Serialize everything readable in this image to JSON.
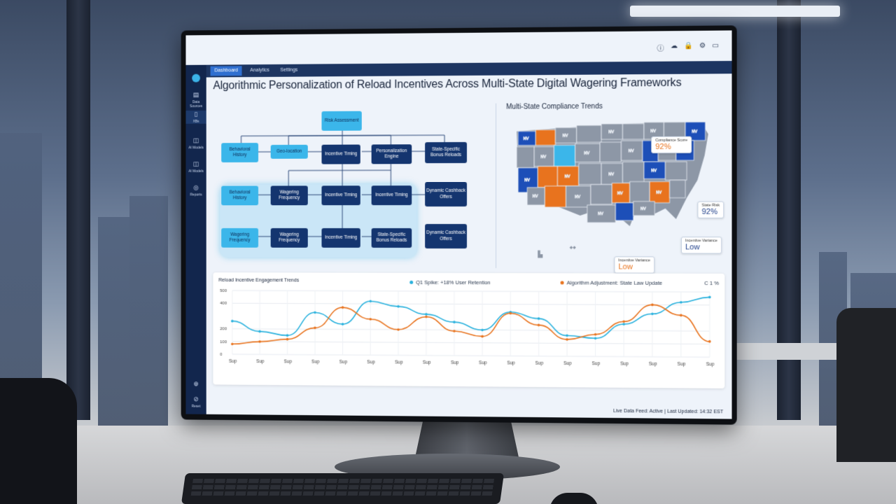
{
  "system_icons": [
    "info-icon",
    "cloud-icon",
    "lock-icon",
    "settings-icon",
    "window-icon"
  ],
  "sidebar": {
    "items": [
      {
        "icon": "database-icon",
        "label": "Data Sources"
      },
      {
        "icon": "list-icon",
        "label": "XBs"
      },
      {
        "icon": "model-icon",
        "label": "AI Models"
      },
      {
        "icon": "model-icon",
        "label": "AI Models"
      },
      {
        "icon": "report-icon",
        "label": "Reports"
      }
    ],
    "bottom": [
      {
        "icon": "help-icon",
        "label": ""
      },
      {
        "icon": "reset-icon",
        "label": "Reset"
      }
    ]
  },
  "tabs": [
    {
      "label": "Dashboard",
      "active": true
    },
    {
      "label": "Analytics",
      "active": false
    },
    {
      "label": "Settings",
      "active": false
    }
  ],
  "page_title": "Algorithmic Personalization of Reload Incentives Across Multi-State Digital Wagering Frameworks",
  "flowchart": {
    "top": "Risk Assessment",
    "row1": [
      "Behavioral History",
      "Geo-location",
      "Incentive Timing",
      "Personalization Engine",
      "State-Specific Bonus Reloads"
    ],
    "row2": [
      "Behavioral History",
      "Wagering Frequency",
      "Incentive Timing",
      "Incentive Timing",
      "Dynamic Cashback Offers"
    ],
    "row3": [
      "Wagering Frequency",
      "Wagering Frequency",
      "Incentive Timing",
      "State-Specific Bonus Reloads",
      "Dynamic Cashback Offers"
    ]
  },
  "map": {
    "title": "Multi-State Compliance Trends",
    "callouts": [
      {
        "label": "Compliance Score",
        "value": "92%",
        "color": "#e8731e"
      },
      {
        "label": "State Risk",
        "value": "92%",
        "color": "#1f3f8a"
      },
      {
        "label": "Incentive Variance",
        "value": "Low",
        "color": "#1f3f8a"
      },
      {
        "label": "Incentive Variance",
        "value": "Low",
        "color": "#e8731e"
      }
    ],
    "state_label": "NV",
    "colors": {
      "gray": "#8d97a6",
      "blue": "#1d4fb8",
      "orange": "#e8731e",
      "cyan": "#3bb6ea"
    }
  },
  "chart_data": {
    "type": "line",
    "title": "Reload Incentive Engagement Trends",
    "x": [
      "Sup",
      "Sup",
      "Sup",
      "Sup",
      "Sup",
      "Sup",
      "Sup",
      "Sup",
      "Sup",
      "Sup",
      "Sup",
      "Sup",
      "Sup",
      "Sup",
      "Sup",
      "Sup",
      "Sup",
      "Sup"
    ],
    "yticks": [
      "0",
      "100",
      "200",
      "400",
      "500"
    ],
    "ylim": [
      0,
      500
    ],
    "series": [
      {
        "name": "Q1 Spike: +18% User Retention",
        "color": "#29b1dd",
        "values": [
          260,
          180,
          150,
          330,
          240,
          420,
          380,
          320,
          260,
          200,
          340,
          290,
          160,
          140,
          250,
          330,
          420,
          460
        ]
      },
      {
        "name": "Algorithm Adjustment: State Law Update",
        "color": "#e8731e",
        "values": [
          80,
          100,
          120,
          210,
          370,
          280,
          200,
          300,
          190,
          150,
          330,
          240,
          130,
          170,
          270,
          400,
          320,
          120
        ]
      }
    ],
    "extra_label": "C 1 %"
  },
  "status_bar": "Live Data Feed: Active | Last Updated: 14:32 EST"
}
